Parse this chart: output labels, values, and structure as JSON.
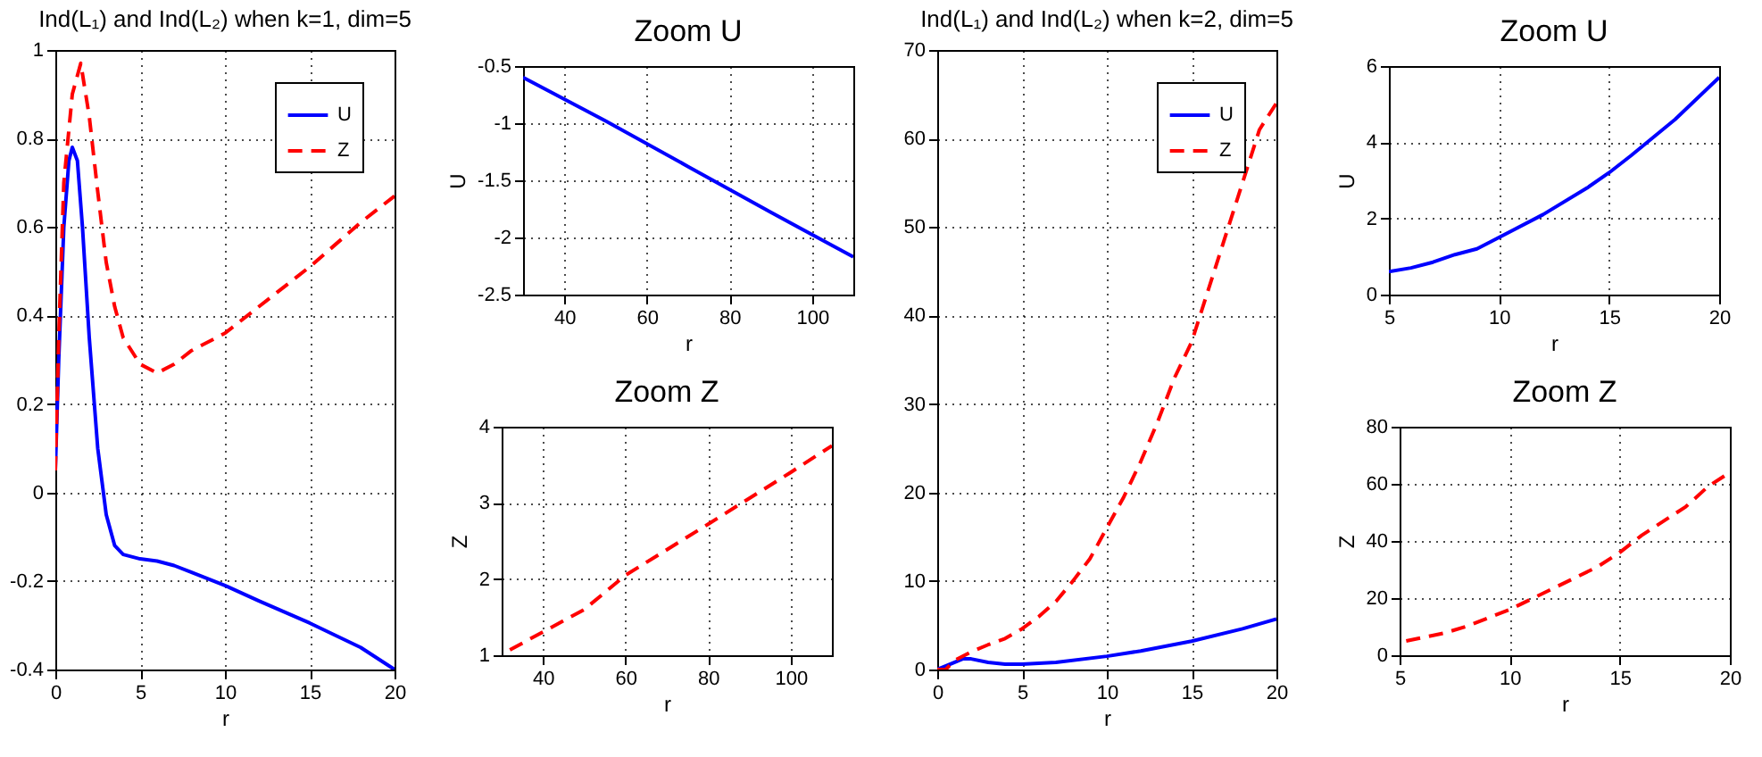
{
  "chart_data": [
    {
      "type": "line",
      "title": "Ind(L₁) and Ind(L₂) when k=1, dim=5",
      "xlabel": "r",
      "xlim": [
        0,
        20
      ],
      "xticks": [
        0,
        5,
        10,
        15,
        20
      ],
      "ylim": [
        -0.4,
        1
      ],
      "yticks": [
        -0.4,
        -0.2,
        0,
        0.2,
        0.4,
        0.6,
        0.8,
        1
      ],
      "grid": true,
      "legend": "top right",
      "series": [
        {
          "name": "U",
          "color": "#0000ff",
          "line_style": "solid",
          "x": [
            0,
            0.2,
            0.5,
            0.8,
            1.0,
            1.3,
            1.6,
            2,
            2.5,
            3,
            3.5,
            4,
            5,
            6,
            7,
            8,
            10,
            12,
            15,
            18,
            20
          ],
          "values": [
            0.05,
            0.3,
            0.6,
            0.75,
            0.78,
            0.75,
            0.6,
            0.35,
            0.1,
            -0.05,
            -0.12,
            -0.14,
            -0.15,
            -0.155,
            -0.165,
            -0.18,
            -0.21,
            -0.245,
            -0.295,
            -0.35,
            -0.4
          ]
        },
        {
          "name": "Z",
          "color": "#ff0000",
          "line_style": "dashed",
          "x": [
            0,
            0.2,
            0.5,
            1,
            1.5,
            2,
            2.5,
            3,
            3.5,
            4,
            5,
            6,
            7,
            8,
            10,
            12,
            15,
            18,
            20
          ],
          "values": [
            0.05,
            0.35,
            0.7,
            0.9,
            0.97,
            0.85,
            0.68,
            0.52,
            0.42,
            0.35,
            0.29,
            0.27,
            0.29,
            0.32,
            0.36,
            0.42,
            0.51,
            0.61,
            0.67
          ]
        }
      ]
    },
    {
      "type": "line",
      "title": "Zoom U",
      "xlabel": "r",
      "ylabel": "U",
      "xlim": [
        30,
        110
      ],
      "xticks": [
        40,
        60,
        80,
        100
      ],
      "ylim": [
        -2.5,
        -0.5
      ],
      "yticks": [
        -2.5,
        -2,
        -1.5,
        -1,
        -0.5
      ],
      "grid": true,
      "series": [
        {
          "color": "#0000ff",
          "line_style": "solid",
          "x": [
            30,
            50,
            70,
            90,
            110
          ],
          "values": [
            -0.6,
            -0.98,
            -1.38,
            -1.78,
            -2.17
          ]
        }
      ]
    },
    {
      "type": "line",
      "title": "Zoom Z",
      "xlabel": "r",
      "ylabel": "Z",
      "xlim": [
        30,
        110
      ],
      "xticks": [
        40,
        60,
        80,
        100
      ],
      "ylim": [
        1,
        4
      ],
      "yticks": [
        1,
        2,
        3,
        4
      ],
      "grid": true,
      "series": [
        {
          "color": "#ff0000",
          "line_style": "dashed",
          "x": [
            32,
            50,
            60,
            80,
            100,
            110
          ],
          "values": [
            1.07,
            1.6,
            2.05,
            2.72,
            3.4,
            3.75
          ]
        }
      ]
    },
    {
      "type": "line",
      "title": "Ind(L₁) and Ind(L₂) when k=2, dim=5",
      "xlabel": "r",
      "xlim": [
        0,
        20
      ],
      "xticks": [
        0,
        5,
        10,
        15,
        20
      ],
      "ylim": [
        0,
        70
      ],
      "yticks": [
        0,
        10,
        20,
        30,
        40,
        50,
        60,
        70
      ],
      "grid": true,
      "legend": "top right",
      "series": [
        {
          "name": "U",
          "color": "#0000ff",
          "line_style": "solid",
          "x": [
            0,
            1,
            1.5,
            2,
            3,
            4,
            5,
            7,
            10,
            12,
            15,
            18,
            20
          ],
          "values": [
            0,
            0.8,
            1.2,
            1.2,
            0.8,
            0.6,
            0.6,
            0.8,
            1.5,
            2.1,
            3.2,
            4.6,
            5.7
          ]
        },
        {
          "name": "Z",
          "color": "#ff0000",
          "line_style": "dashed",
          "x": [
            0,
            0.5,
            1,
            2,
            3,
            4,
            5,
            6,
            7,
            8,
            9,
            10,
            11,
            12,
            13,
            14,
            15,
            16,
            17,
            18,
            19,
            20
          ],
          "values": [
            0,
            0,
            1,
            2,
            2.8,
            3.5,
            4.6,
            6,
            7.7,
            10,
            12.5,
            16,
            19.5,
            23.5,
            28,
            33,
            37,
            43,
            49,
            55,
            61,
            64
          ]
        }
      ]
    },
    {
      "type": "line",
      "title": "Zoom U",
      "xlabel": "r",
      "ylabel": "U",
      "xlim": [
        5,
        20
      ],
      "xticks": [
        5,
        10,
        15,
        20
      ],
      "ylim": [
        0,
        6
      ],
      "yticks": [
        0,
        2,
        4,
        6
      ],
      "grid": true,
      "series": [
        {
          "color": "#0000ff",
          "line_style": "solid",
          "x": [
            5,
            6,
            7,
            8,
            9,
            10,
            12,
            14,
            15,
            16,
            18,
            20
          ],
          "values": [
            0.6,
            0.7,
            0.85,
            1.05,
            1.2,
            1.5,
            2.1,
            2.8,
            3.2,
            3.65,
            4.6,
            5.7
          ]
        }
      ]
    },
    {
      "type": "line",
      "title": "Zoom Z",
      "xlabel": "r",
      "ylabel": "Z",
      "xlim": [
        5,
        20
      ],
      "xticks": [
        5,
        10,
        15,
        20
      ],
      "ylim": [
        0,
        80
      ],
      "yticks": [
        0,
        20,
        40,
        60,
        80
      ],
      "grid": true,
      "series": [
        {
          "color": "#ff0000",
          "line_style": "dashed",
          "x": [
            5.3,
            7,
            8,
            10,
            12,
            14,
            15,
            16,
            18,
            19,
            20
          ],
          "values": [
            5,
            7.7,
            10,
            16,
            23.5,
            31,
            36,
            42,
            52,
            59,
            64
          ]
        }
      ]
    }
  ]
}
